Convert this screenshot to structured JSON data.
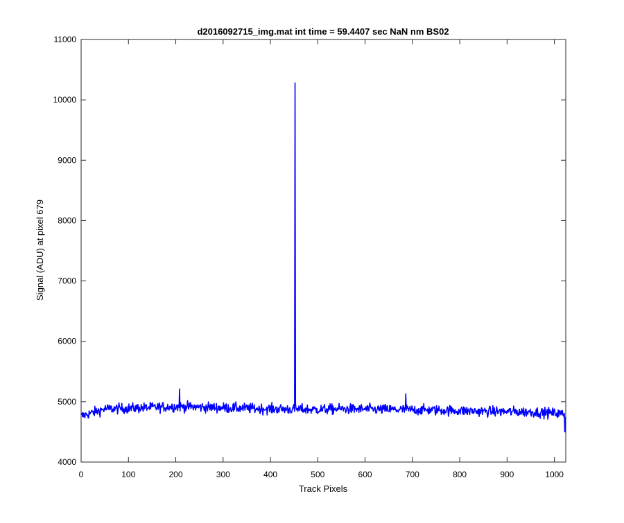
{
  "chart_data": {
    "type": "line",
    "title": "d2016092715_img.mat int time = 59.4407 sec  NaN nm BS02",
    "xlabel": "Track Pixels",
    "ylabel": "Signal (ADU) at pixel 679",
    "xlim": [
      0,
      1024
    ],
    "ylim": [
      4000,
      11000
    ],
    "xticks": [
      0,
      100,
      200,
      300,
      400,
      500,
      600,
      700,
      800,
      900,
      1000
    ],
    "yticks": [
      4000,
      5000,
      6000,
      7000,
      8000,
      9000,
      10000,
      11000
    ],
    "grid": false,
    "box": true,
    "line_color": "#0000ff",
    "series": [
      {
        "baseline": [
          [
            0,
            4760
          ],
          [
            50,
            4880
          ],
          [
            100,
            4890
          ],
          [
            150,
            4905
          ],
          [
            200,
            4920
          ],
          [
            250,
            4910
          ],
          [
            300,
            4900
          ],
          [
            350,
            4890
          ],
          [
            400,
            4880
          ],
          [
            450,
            4875
          ],
          [
            500,
            4870
          ],
          [
            550,
            4880
          ],
          [
            600,
            4875
          ],
          [
            650,
            4870
          ],
          [
            700,
            4865
          ],
          [
            750,
            4860
          ],
          [
            800,
            4850
          ],
          [
            850,
            4840
          ],
          [
            900,
            4835
          ],
          [
            950,
            4830
          ],
          [
            1000,
            4810
          ],
          [
            1024,
            4790
          ]
        ],
        "noise_amplitude": 70,
        "spikes": [
          {
            "x": 452,
            "y": 10280
          },
          {
            "x": 208,
            "y": 5210
          },
          {
            "x": 686,
            "y": 5130
          },
          {
            "x": 1022,
            "y": 4500
          }
        ],
        "points": 1024
      }
    ]
  }
}
